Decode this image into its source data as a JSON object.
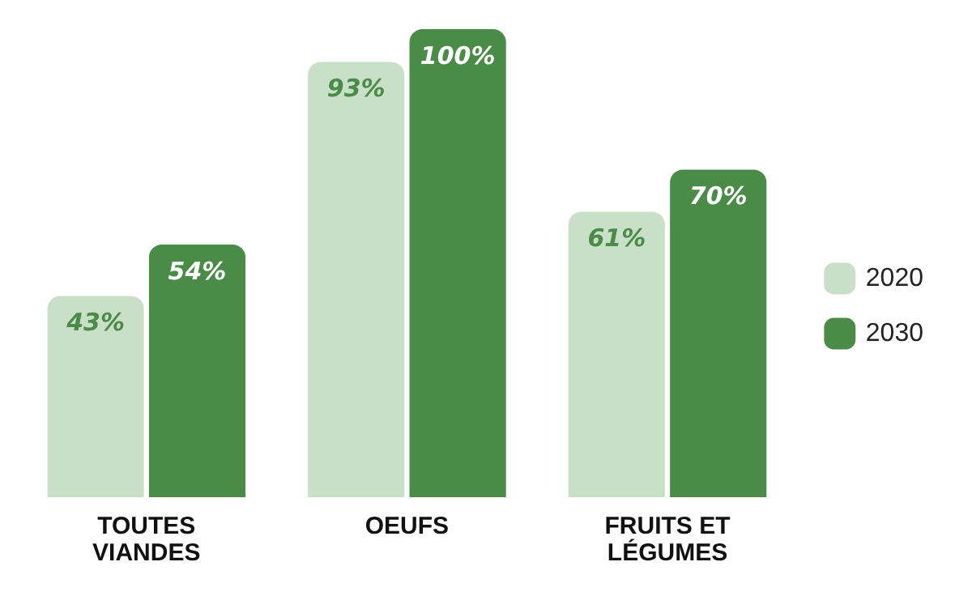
{
  "chart_data": {
    "type": "bar",
    "categories": [
      "TOUTES VIANDES",
      "OEUFS",
      "FRUITS ET LÉGUMES"
    ],
    "series": [
      {
        "name": "2020",
        "color": "#c9dfc8",
        "values": [
          43,
          93,
          61
        ],
        "value_labels": [
          "43%",
          "93%",
          "61%"
        ]
      },
      {
        "name": "2030",
        "color": "#4a8c47",
        "values": [
          54,
          100,
          70
        ],
        "value_labels": [
          "54%",
          "100%",
          "70%"
        ]
      }
    ],
    "legend": "right",
    "grid": false
  }
}
